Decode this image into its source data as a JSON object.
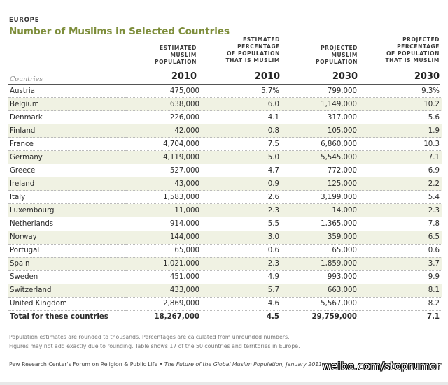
{
  "header": {
    "region": "EUROPE",
    "title": "Number of Muslims in Selected Countries"
  },
  "columns": {
    "pop2010": "ESTIMATED\nMUSLIM\nPOPULATION",
    "pct2010": "ESTIMATED\nPERCENTAGE\nOF POPULATION\nTHAT IS MUSLIM",
    "pop2030": "PROJECTED\nMUSLIM\nPOPULATION",
    "pct2030": "PROJECTED\nPERCENTAGE\nOF POPULATION\nTHAT IS MUSLIM",
    "year1": "2010",
    "year2": "2010",
    "year3": "2030",
    "year4": "2030",
    "countries_label": "Countries"
  },
  "rows": [
    {
      "country": "Austria",
      "pop2010": "475,000",
      "pct2010": "5.7%",
      "pop2030": "799,000",
      "pct2030": "9.3%"
    },
    {
      "country": "Belgium",
      "pop2010": "638,000",
      "pct2010": "6.0",
      "pop2030": "1,149,000",
      "pct2030": "10.2"
    },
    {
      "country": "Denmark",
      "pop2010": "226,000",
      "pct2010": "4.1",
      "pop2030": "317,000",
      "pct2030": "5.6"
    },
    {
      "country": "Finland",
      "pop2010": "42,000",
      "pct2010": "0.8",
      "pop2030": "105,000",
      "pct2030": "1.9"
    },
    {
      "country": "France",
      "pop2010": "4,704,000",
      "pct2010": "7.5",
      "pop2030": "6,860,000",
      "pct2030": "10.3"
    },
    {
      "country": "Germany",
      "pop2010": "4,119,000",
      "pct2010": "5.0",
      "pop2030": "5,545,000",
      "pct2030": "7.1"
    },
    {
      "country": "Greece",
      "pop2010": "527,000",
      "pct2010": "4.7",
      "pop2030": "772,000",
      "pct2030": "6.9"
    },
    {
      "country": "Ireland",
      "pop2010": "43,000",
      "pct2010": "0.9",
      "pop2030": "125,000",
      "pct2030": "2.2"
    },
    {
      "country": "Italy",
      "pop2010": "1,583,000",
      "pct2010": "2.6",
      "pop2030": "3,199,000",
      "pct2030": "5.4"
    },
    {
      "country": "Luxembourg",
      "pop2010": "11,000",
      "pct2010": "2.3",
      "pop2030": "14,000",
      "pct2030": "2.3"
    },
    {
      "country": "Netherlands",
      "pop2010": "914,000",
      "pct2010": "5.5",
      "pop2030": "1,365,000",
      "pct2030": "7.8"
    },
    {
      "country": "Norway",
      "pop2010": "144,000",
      "pct2010": "3.0",
      "pop2030": "359,000",
      "pct2030": "6.5"
    },
    {
      "country": "Portugal",
      "pop2010": "65,000",
      "pct2010": "0.6",
      "pop2030": "65,000",
      "pct2030": "0.6"
    },
    {
      "country": "Spain",
      "pop2010": "1,021,000",
      "pct2010": "2.3",
      "pop2030": "1,859,000",
      "pct2030": "3.7"
    },
    {
      "country": "Sweden",
      "pop2010": "451,000",
      "pct2010": "4.9",
      "pop2030": "993,000",
      "pct2030": "9.9"
    },
    {
      "country": "Switzerland",
      "pop2010": "433,000",
      "pct2010": "5.7",
      "pop2030": "663,000",
      "pct2030": "8.1"
    },
    {
      "country": "United Kingdom",
      "pop2010": "2,869,000",
      "pct2010": "4.6",
      "pop2030": "5,567,000",
      "pct2030": "8.2"
    }
  ],
  "total": {
    "country": "Total for these countries",
    "pop2010": "18,267,000",
    "pct2010": "4.5",
    "pop2030": "29,759,000",
    "pct2030": "7.1"
  },
  "notes": {
    "line1": "Population estimates are rounded to thousands. Percentages are calculated from unrounded numbers.",
    "line2": "Figures may not add exactly due to rounding. Table shows 17 of the 50 countries and territories in Europe."
  },
  "source": {
    "org": "Pew Research Center's Forum on Religion & Public Life • ",
    "publication": "The Future of the Global Muslim Population, January 2011"
  },
  "watermark": "weibo.com/stoprumor"
}
